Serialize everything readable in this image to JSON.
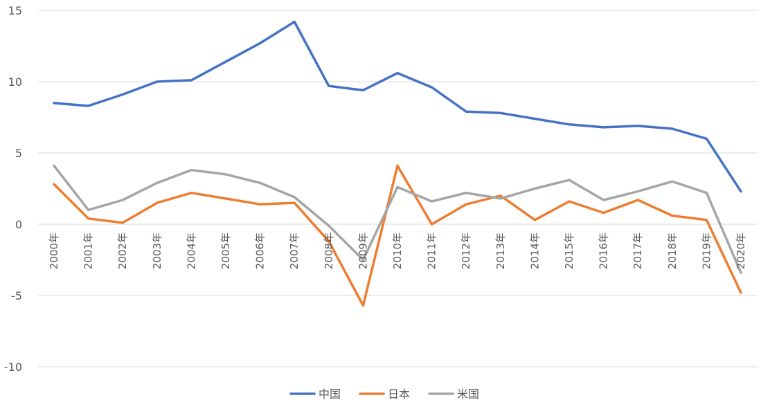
{
  "chart_data": {
    "type": "line",
    "title": "",
    "xlabel": "",
    "ylabel": "",
    "ylim": [
      -10,
      15
    ],
    "yticks": [
      -10,
      -5,
      0,
      5,
      10,
      15
    ],
    "grid": true,
    "legend_position": "bottom",
    "categories": [
      "2000年",
      "2001年",
      "2002年",
      "2003年",
      "2004年",
      "2005年",
      "2006年",
      "2007年",
      "2008年",
      "2009年",
      "2010年",
      "2011年",
      "2012年",
      "2013年",
      "2014年",
      "2015年",
      "2016年",
      "2017年",
      "2018年",
      "2019年",
      "2020年"
    ],
    "series": [
      {
        "name": "中国",
        "color": "#4472c4",
        "values": [
          8.5,
          8.3,
          9.1,
          10.0,
          10.1,
          11.4,
          12.7,
          14.2,
          9.7,
          9.4,
          10.6,
          9.6,
          7.9,
          7.8,
          7.4,
          7.0,
          6.8,
          6.9,
          6.7,
          6.0,
          2.3
        ]
      },
      {
        "name": "日本",
        "color": "#ed7d31",
        "values": [
          2.8,
          0.4,
          0.1,
          1.5,
          2.2,
          1.8,
          1.4,
          1.5,
          -1.2,
          -5.7,
          4.1,
          0.0,
          1.4,
          2.0,
          0.3,
          1.6,
          0.8,
          1.7,
          0.6,
          0.3,
          -4.8
        ]
      },
      {
        "name": "米国",
        "color": "#a5a5a5",
        "values": [
          4.1,
          1.0,
          1.7,
          2.9,
          3.8,
          3.5,
          2.9,
          1.9,
          -0.1,
          -2.5,
          2.6,
          1.6,
          2.2,
          1.8,
          2.5,
          3.1,
          1.7,
          2.3,
          3.0,
          2.2,
          -3.4
        ]
      }
    ]
  }
}
